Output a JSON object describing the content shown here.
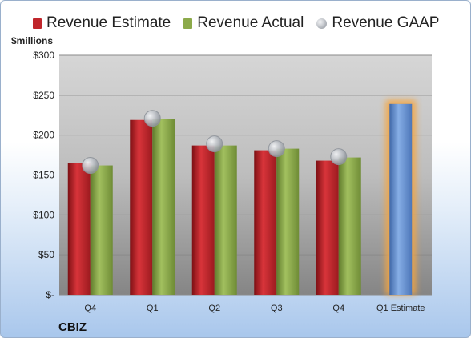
{
  "legend": {
    "estimate_label": "Revenue Estimate",
    "actual_label": "Revenue Actual",
    "gaap_label": "Revenue GAAP"
  },
  "units_label": "$millions",
  "company": "CBIZ",
  "colors": {
    "estimate": "#c0262b",
    "actual": "#8caa4a",
    "gaap": "#b4b8be",
    "forecast": "#6f97d2",
    "highlight": "#f5a540"
  },
  "chart_data": {
    "type": "bar",
    "categories": [
      "Q4",
      "Q1",
      "Q2",
      "Q3",
      "Q4",
      "Q1 Estimate"
    ],
    "series": [
      {
        "name": "Revenue Estimate",
        "values": [
          165,
          219,
          187,
          181,
          168,
          null
        ]
      },
      {
        "name": "Revenue Actual",
        "values": [
          162,
          220,
          187,
          183,
          172,
          null
        ]
      },
      {
        "name": "Revenue GAAP",
        "type": "scatter",
        "values": [
          162,
          221,
          189,
          183,
          173,
          null
        ]
      },
      {
        "name": "Q1 Estimate",
        "values": [
          null,
          null,
          null,
          null,
          null,
          239
        ]
      }
    ],
    "ylim": [
      0,
      300
    ],
    "yticks": [
      {
        "value": 0,
        "label": "$-"
      },
      {
        "value": 50,
        "label": "$50"
      },
      {
        "value": 100,
        "label": "$100"
      },
      {
        "value": 150,
        "label": "$150"
      },
      {
        "value": 200,
        "label": "$200"
      },
      {
        "value": 250,
        "label": "$250"
      },
      {
        "value": 300,
        "label": "$300"
      }
    ],
    "ylabel": "$millions",
    "grid": true,
    "legend_position": "top"
  }
}
